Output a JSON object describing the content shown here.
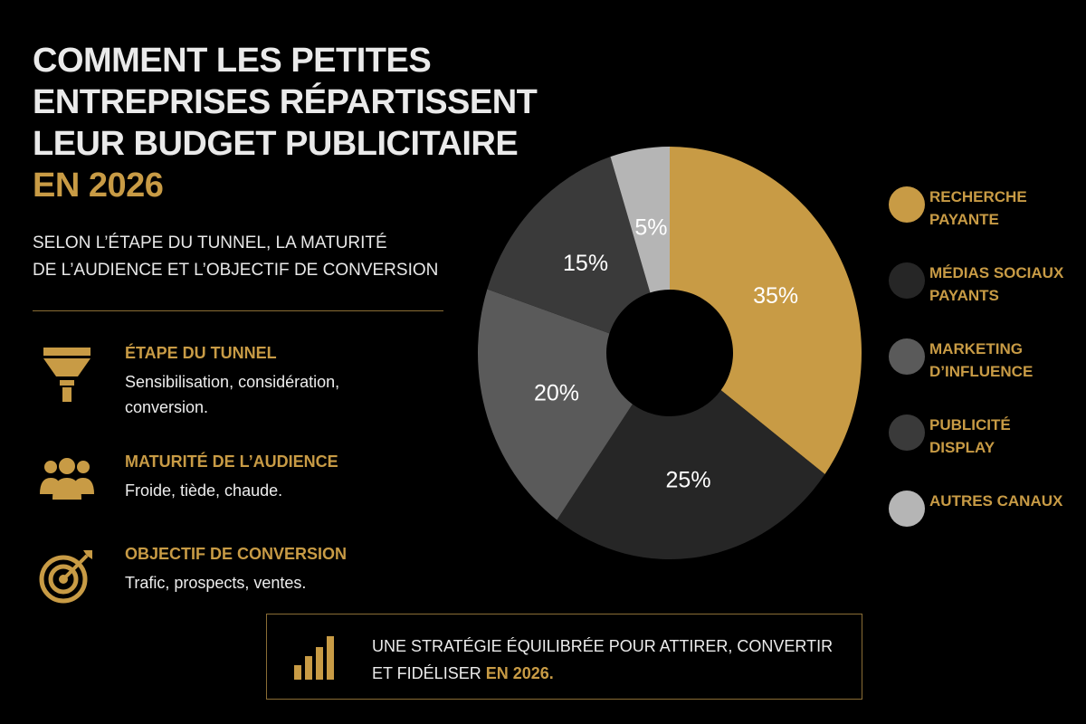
{
  "title": {
    "lines": [
      "COMMENT LES PETITES",
      "ENTREPRISES RÉPARTISSENT",
      "LEUR BUDGET PUBLICITAIRE"
    ],
    "accent": "EN 2026"
  },
  "subtitle": {
    "lines": [
      "SELON L’ÉTAPE DU TUNNEL, LA MATURITÉ",
      "DE L’AUDIENCE ET L’OBJECTIF DE CONVERSION"
    ]
  },
  "features": [
    {
      "icon": "funnel-icon",
      "title": "ÉTAPE DU TUNNEL",
      "desc": "Sensibilisation, considération, conversion."
    },
    {
      "icon": "audience-icon",
      "title": "MATURITÉ DE L’AUDIENCE",
      "desc": "Froide, tiède, chaude."
    },
    {
      "icon": "target-icon",
      "title": "OBJECTIF DE CONVERSION",
      "desc": "Trafic, prospects, ventes."
    }
  ],
  "chart_data": {
    "type": "pie",
    "donut": true,
    "legend_position": "right",
    "categories": [
      "RECHERCHE PAYANTE",
      "MÉDIAS SOCIAUX PAYANTS",
      "MARKETING D’INFLUENCE",
      "PUBLICITÉ DISPLAY",
      "AUTRES CANAUX"
    ],
    "values": [
      35,
      25,
      20,
      15,
      5
    ],
    "labels": [
      "35%",
      "25%",
      "20%",
      "15%",
      "5%"
    ],
    "colors": [
      "#c89b45",
      "#262626",
      "#5a5a5a",
      "#3a3a3a",
      "#b5b5b5"
    ]
  },
  "legend": [
    {
      "label": "RECHERCHE PAYANTE",
      "color": "#c89b45"
    },
    {
      "label": "MÉDIAS SOCIAUX PAYANTS",
      "color": "#262626"
    },
    {
      "label": "MARKETING D’INFLUENCE",
      "color": "#5a5a5a"
    },
    {
      "label": "PUBLICITÉ DISPLAY",
      "color": "#3a3a3a"
    },
    {
      "label": "AUTRES CANAUX",
      "color": "#b5b5b5"
    }
  ],
  "callout": {
    "icon": "bar-chart-icon",
    "text": "UNE STRATÉGIE ÉQUILIBRÉE POUR ATTIRER, CONVERTIR ET FIDÉLISER",
    "accent": "EN 2026."
  },
  "colors": {
    "accent": "#c89b45",
    "background": "#000000",
    "divider": "#8a6d35"
  }
}
